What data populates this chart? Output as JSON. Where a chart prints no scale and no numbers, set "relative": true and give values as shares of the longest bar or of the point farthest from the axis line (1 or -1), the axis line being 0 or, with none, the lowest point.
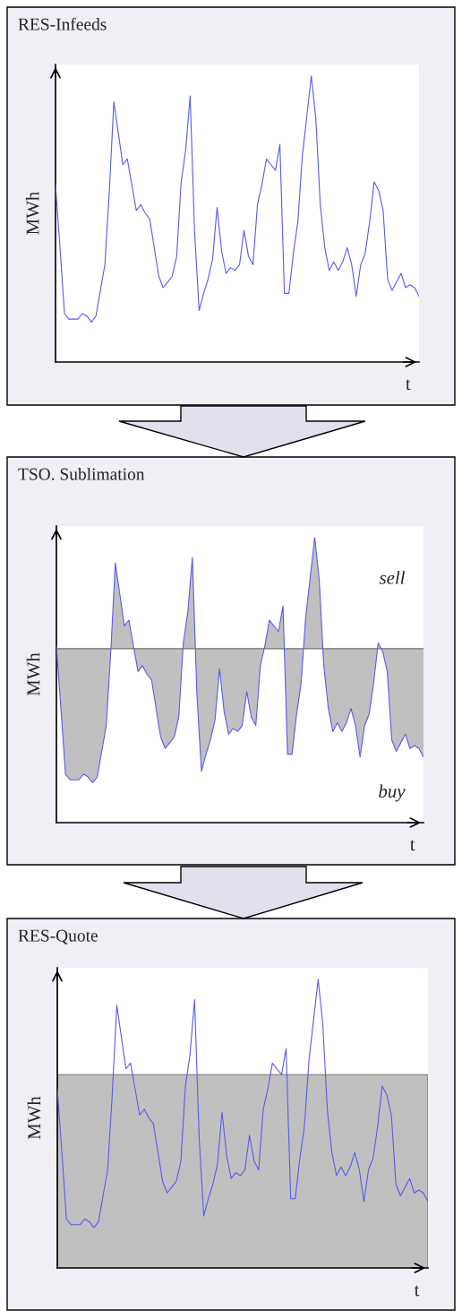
{
  "chart_data": [
    {
      "type": "line",
      "title": "RES-Infeeds",
      "xlabel": "t",
      "ylabel": "MWh",
      "relative": true,
      "color": "#5a5af0",
      "categories": [
        null,
        null,
        null,
        null,
        null,
        null,
        null,
        null,
        null,
        null,
        null,
        null,
        null,
        null,
        null,
        null,
        null,
        null,
        null,
        null,
        null,
        null,
        null,
        null,
        null,
        null,
        null,
        null,
        null,
        null,
        null,
        null,
        null,
        null,
        null,
        null,
        null,
        null,
        null,
        null,
        null,
        null,
        null,
        null,
        null,
        null,
        null,
        null,
        null,
        null,
        null,
        null,
        null,
        null,
        null,
        null,
        null,
        null,
        null,
        null,
        null,
        null,
        null,
        null,
        null,
        null,
        null,
        null,
        null,
        null,
        null,
        null,
        null,
        null,
        null,
        null,
        null,
        null,
        null,
        null,
        null,
        null
      ],
      "values": [
        0.62,
        0.4,
        0.17,
        0.15,
        0.15,
        0.15,
        0.17,
        0.16,
        0.14,
        0.16,
        0.25,
        0.34,
        0.6,
        0.91,
        0.8,
        0.69,
        0.71,
        0.62,
        0.53,
        0.55,
        0.52,
        0.5,
        0.4,
        0.3,
        0.26,
        0.28,
        0.3,
        0.37,
        0.63,
        0.74,
        0.93,
        0.45,
        0.18,
        0.24,
        0.29,
        0.36,
        0.54,
        0.39,
        0.31,
        0.33,
        0.32,
        0.34,
        0.46,
        0.37,
        0.34,
        0.55,
        0.62,
        0.71,
        0.69,
        0.67,
        0.76,
        0.24,
        0.24,
        0.38,
        0.49,
        0.72,
        0.86,
        1.0,
        0.85,
        0.55,
        0.4,
        0.32,
        0.35,
        0.32,
        0.35,
        0.4,
        0.34,
        0.23,
        0.34,
        0.38,
        0.49,
        0.63,
        0.6,
        0.53,
        0.29,
        0.25,
        0.28,
        0.31,
        0.26,
        0.27,
        0.26,
        0.23
      ]
    },
    {
      "type": "area",
      "title": "TSO. Sublimation",
      "xlabel": "t",
      "ylabel": "MWh",
      "relative": true,
      "color": "#5a5af0",
      "annotations": [
        "sell",
        "buy"
      ],
      "ref_lines": [
        {
          "axis": "y",
          "value": 0.61,
          "color": "#707070"
        }
      ],
      "categories": [
        null,
        null,
        null,
        null,
        null,
        null,
        null,
        null,
        null,
        null,
        null,
        null,
        null,
        null,
        null,
        null,
        null,
        null,
        null,
        null,
        null,
        null,
        null,
        null,
        null,
        null,
        null,
        null,
        null,
        null,
        null,
        null,
        null,
        null,
        null,
        null,
        null,
        null,
        null,
        null,
        null,
        null,
        null,
        null,
        null,
        null,
        null,
        null,
        null,
        null,
        null,
        null,
        null,
        null,
        null,
        null,
        null,
        null,
        null,
        null,
        null,
        null,
        null,
        null,
        null,
        null,
        null,
        null,
        null,
        null,
        null,
        null,
        null,
        null,
        null,
        null,
        null,
        null,
        null,
        null,
        null,
        null
      ],
      "values": [
        0.62,
        0.4,
        0.17,
        0.15,
        0.15,
        0.15,
        0.17,
        0.16,
        0.14,
        0.16,
        0.25,
        0.34,
        0.6,
        0.91,
        0.8,
        0.69,
        0.71,
        0.62,
        0.53,
        0.55,
        0.52,
        0.5,
        0.4,
        0.3,
        0.26,
        0.28,
        0.3,
        0.37,
        0.63,
        0.74,
        0.93,
        0.45,
        0.18,
        0.24,
        0.29,
        0.36,
        0.54,
        0.39,
        0.31,
        0.33,
        0.32,
        0.34,
        0.46,
        0.37,
        0.34,
        0.55,
        0.62,
        0.71,
        0.69,
        0.67,
        0.76,
        0.24,
        0.24,
        0.38,
        0.49,
        0.72,
        0.86,
        1.0,
        0.85,
        0.55,
        0.4,
        0.32,
        0.35,
        0.32,
        0.35,
        0.4,
        0.34,
        0.23,
        0.34,
        0.38,
        0.49,
        0.63,
        0.6,
        0.53,
        0.29,
        0.25,
        0.28,
        0.31,
        0.26,
        0.27,
        0.26,
        0.23
      ]
    },
    {
      "type": "line",
      "title": "RES-Quote",
      "xlabel": "t",
      "ylabel": "MWh",
      "relative": true,
      "color": "#5a5af0",
      "bands": [
        {
          "axis": "y",
          "from": 0,
          "to": 0.67,
          "color": "#c0c0c0"
        }
      ],
      "categories": [
        null,
        null,
        null,
        null,
        null,
        null,
        null,
        null,
        null,
        null,
        null,
        null,
        null,
        null,
        null,
        null,
        null,
        null,
        null,
        null,
        null,
        null,
        null,
        null,
        null,
        null,
        null,
        null,
        null,
        null,
        null,
        null,
        null,
        null,
        null,
        null,
        null,
        null,
        null,
        null,
        null,
        null,
        null,
        null,
        null,
        null,
        null,
        null,
        null,
        null,
        null,
        null,
        null,
        null,
        null,
        null,
        null,
        null,
        null,
        null,
        null,
        null,
        null,
        null,
        null,
        null,
        null,
        null,
        null,
        null,
        null,
        null,
        null,
        null,
        null,
        null,
        null,
        null,
        null,
        null,
        null,
        null
      ],
      "values": [
        0.62,
        0.4,
        0.17,
        0.15,
        0.15,
        0.15,
        0.17,
        0.16,
        0.14,
        0.16,
        0.25,
        0.34,
        0.6,
        0.91,
        0.8,
        0.69,
        0.71,
        0.62,
        0.53,
        0.55,
        0.52,
        0.5,
        0.4,
        0.3,
        0.26,
        0.28,
        0.3,
        0.37,
        0.63,
        0.74,
        0.93,
        0.45,
        0.18,
        0.24,
        0.29,
        0.36,
        0.54,
        0.39,
        0.31,
        0.33,
        0.32,
        0.34,
        0.46,
        0.37,
        0.34,
        0.55,
        0.62,
        0.71,
        0.69,
        0.67,
        0.76,
        0.24,
        0.24,
        0.38,
        0.49,
        0.72,
        0.86,
        1.0,
        0.85,
        0.55,
        0.4,
        0.32,
        0.35,
        0.32,
        0.35,
        0.4,
        0.34,
        0.23,
        0.34,
        0.38,
        0.49,
        0.63,
        0.6,
        0.53,
        0.29,
        0.25,
        0.28,
        0.31,
        0.26,
        0.27,
        0.26,
        0.23
      ]
    }
  ]
}
